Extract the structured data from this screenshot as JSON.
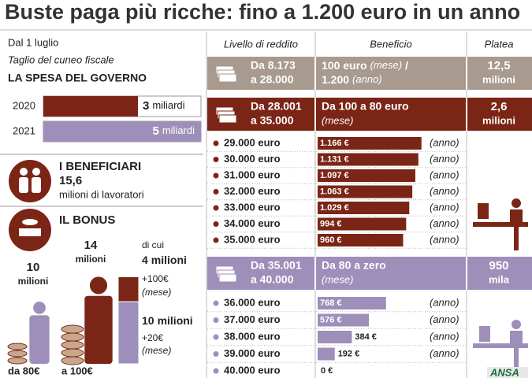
{
  "title": "Buste paga più ricche: fino a 1.200 euro in un anno",
  "source": "ANSA",
  "left": {
    "date": "Dal 1 luglio",
    "subtitle": "Taglio del cuneo fiscale",
    "spending": {
      "heading": "LA SPESA DEL GOVERNO",
      "rows": [
        {
          "year": "2020",
          "amount": 3,
          "unit": "miliardi"
        },
        {
          "year": "2021",
          "amount": 5,
          "unit": "miliardi"
        }
      ]
    },
    "beneficiaries": {
      "heading": "I BENEFICIARI",
      "value": "15,6",
      "unit": "milioni di lavoratori"
    },
    "bonus": {
      "heading": "IL BONUS",
      "groups": [
        {
          "count": 10,
          "unit": "milioni",
          "amount": "da 80€"
        },
        {
          "count": 14,
          "unit": "milioni",
          "amount": "a 100€",
          "of_which": "di cui",
          "split": [
            {
              "count": 4,
              "unit": "milioni",
              "bonus": "+100€",
              "period": "(mese)"
            },
            {
              "count": 10,
              "unit": "milioni",
              "bonus": "+20€",
              "period": "(mese)"
            }
          ]
        }
      ]
    }
  },
  "table": {
    "headers": [
      "Livello di reddito",
      "Beneficio",
      "Platea"
    ],
    "groups": [
      {
        "range": [
          "Da 8.173",
          "a 28.000"
        ],
        "benefit": [
          "100 euro",
          "(mese)",
          "/",
          "1.200",
          "(anno)"
        ],
        "platea": [
          "12,5",
          "milioni"
        ],
        "color": "#a89a8e",
        "rows": []
      },
      {
        "range": [
          "Da 28.001",
          "a 35.000"
        ],
        "benefit": [
          "Da 100 a 80 euro",
          "(mese)"
        ],
        "platea": [
          "2,6",
          "milioni"
        ],
        "color": "#7b2516",
        "rows": [
          {
            "income": "29.000 euro",
            "amount": 1166,
            "amount_label": "1.166 €",
            "period": "(anno)"
          },
          {
            "income": "30.000 euro",
            "amount": 1131,
            "amount_label": "1.131 €",
            "period": "(anno)"
          },
          {
            "income": "31.000 euro",
            "amount": 1097,
            "amount_label": "1.097 €",
            "period": "(anno)"
          },
          {
            "income": "32.000 euro",
            "amount": 1063,
            "amount_label": "1.063 €",
            "period": "(anno)"
          },
          {
            "income": "33.000 euro",
            "amount": 1029,
            "amount_label": "1.029 €",
            "period": "(anno)"
          },
          {
            "income": "34.000 euro",
            "amount": 994,
            "amount_label": "994 €",
            "period": "(anno)"
          },
          {
            "income": "35.000 euro",
            "amount": 960,
            "amount_label": "960 €",
            "period": "(anno)"
          }
        ]
      },
      {
        "range": [
          "Da 35.001",
          "a 40.000"
        ],
        "benefit": [
          "Da 80 a zero",
          "(mese)"
        ],
        "platea": [
          "950",
          "mila"
        ],
        "color": "#9d8fb9",
        "rows": [
          {
            "income": "36.000 euro",
            "amount": 768,
            "amount_label": "768 €",
            "period": "(anno)"
          },
          {
            "income": "37.000 euro",
            "amount": 576,
            "amount_label": "576 €",
            "period": "(anno)"
          },
          {
            "income": "38.000 euro",
            "amount": 384,
            "amount_label": "384 €",
            "period": "(anno)"
          },
          {
            "income": "39.000 euro",
            "amount": 192,
            "amount_label": "192 €",
            "period": "(anno)"
          },
          {
            "income": "40.000 euro",
            "amount": 0,
            "amount_label": "0 €",
            "period": null
          }
        ]
      }
    ]
  }
}
